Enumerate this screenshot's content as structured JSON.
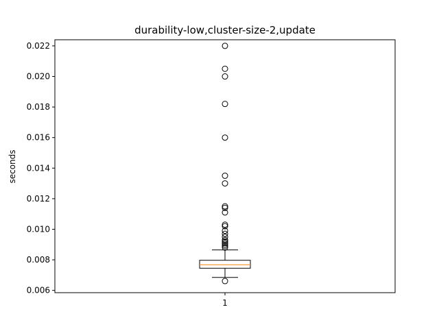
{
  "chart_data": {
    "type": "box",
    "title": "durability-low,cluster-size-2,update",
    "ylabel": "seconds",
    "xlabel": "",
    "categories": [
      "1"
    ],
    "ylim": [
      0.00585,
      0.0224
    ],
    "y_ticks": [
      0.006,
      0.008,
      0.01,
      0.012,
      0.014,
      0.016,
      0.018,
      0.02,
      0.022
    ],
    "y_tick_labels": [
      "0.006",
      "0.008",
      "0.010",
      "0.012",
      "0.014",
      "0.016",
      "0.018",
      "0.020",
      "0.022"
    ],
    "boxes": [
      {
        "category": "1",
        "whisker_low": 0.00685,
        "q1": 0.00745,
        "median": 0.00768,
        "q3": 0.00797,
        "whisker_high": 0.00865,
        "outliers": [
          0.00661,
          0.0088,
          0.0089,
          0.009,
          0.0091,
          0.0092,
          0.0093,
          0.0095,
          0.0097,
          0.0099,
          0.0102,
          0.0103,
          0.0111,
          0.0114,
          0.0115,
          0.013,
          0.0135,
          0.016,
          0.0182,
          0.02,
          0.0205,
          0.022
        ]
      }
    ],
    "colors": {
      "box": "#000000",
      "median": "#ff7f0e",
      "outlier": "#000000"
    },
    "grid": false
  }
}
